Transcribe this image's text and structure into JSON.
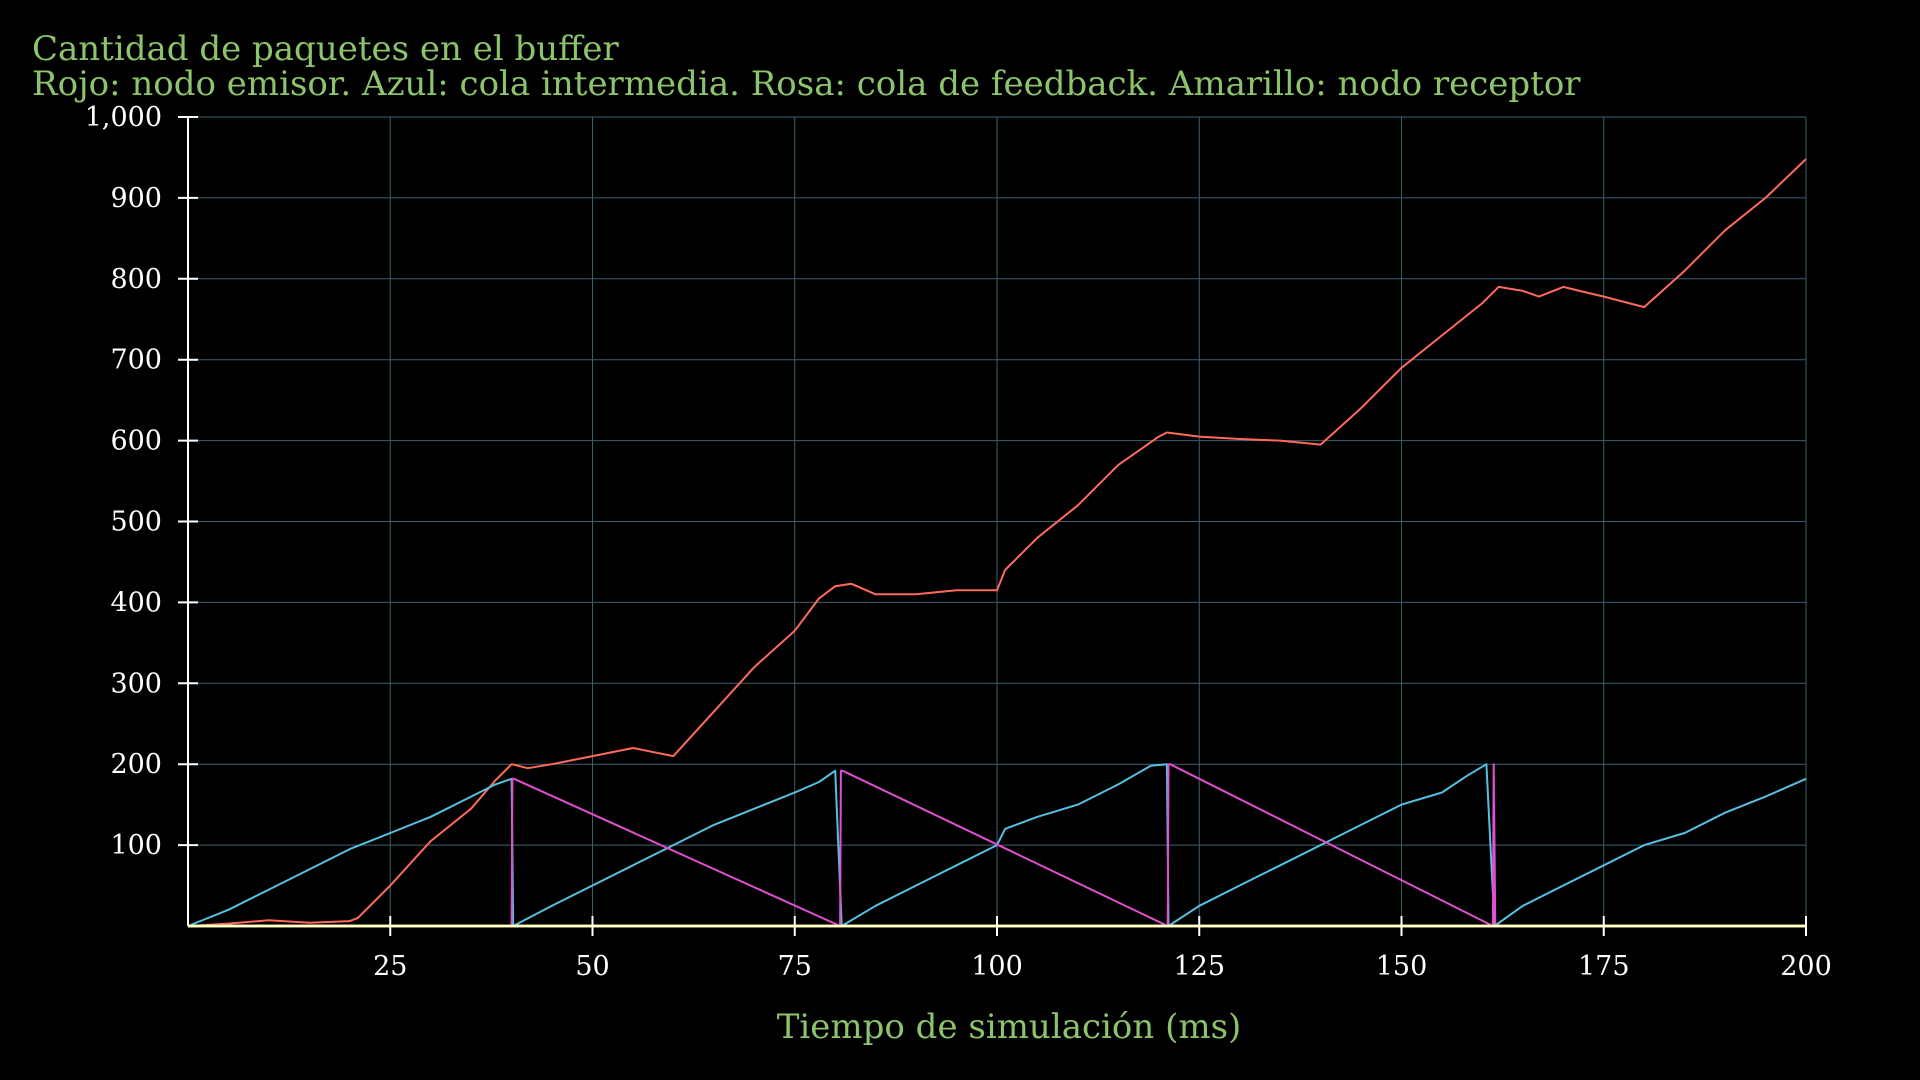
{
  "colors": {
    "background": "#000000",
    "title": "#8dc46b",
    "grid": "#3c5f70",
    "axis": "#ffffff",
    "tick_text": "#ffffff"
  },
  "chart_data": {
    "type": "line",
    "title": "Cantidad de paquetes en el buffer",
    "subtitle": "Rojo: nodo emisor. Azul: cola intermedia. Rosa: cola de feedback. Amarillo: nodo receptor",
    "xlabel": "Tiempo de simulación (ms)",
    "ylabel": "",
    "xlim": [
      0,
      200
    ],
    "ylim": [
      0,
      1000
    ],
    "grid": true,
    "x_ticks": [
      25,
      50,
      75,
      100,
      125,
      150,
      175,
      200
    ],
    "x_tick_labels": [
      "25",
      "50",
      "75",
      "100",
      "125",
      "150",
      "175",
      "200"
    ],
    "y_ticks": [
      100,
      200,
      300,
      400,
      500,
      600,
      700,
      800,
      900,
      1000
    ],
    "y_tick_labels": [
      "100",
      "200",
      "300",
      "400",
      "500",
      "600",
      "700",
      "800",
      "900",
      "1,000"
    ],
    "series": [
      {
        "color": "#ff6a5c",
        "x": [
          0,
          5,
          10,
          15,
          20,
          21,
          25,
          30,
          35,
          38,
          40,
          42,
          45,
          50,
          55,
          60,
          65,
          70,
          75,
          78,
          80,
          82,
          85,
          90,
          95,
          100,
          101,
          105,
          110,
          115,
          120,
          121,
          125,
          130,
          135,
          140,
          145,
          150,
          155,
          160,
          162,
          165,
          167,
          170,
          172,
          175,
          180,
          185,
          190,
          195,
          200
        ],
        "y": [
          0,
          3,
          7,
          4,
          6,
          10,
          50,
          105,
          145,
          180,
          200,
          195,
          200,
          210,
          220,
          210,
          265,
          320,
          365,
          405,
          420,
          423,
          410,
          410,
          415,
          415,
          440,
          480,
          520,
          570,
          605,
          610,
          605,
          602,
          600,
          595,
          640,
          690,
          730,
          770,
          790,
          785,
          778,
          790,
          785,
          778,
          765,
          810,
          860,
          900,
          948
        ]
      },
      {
        "color": "#56c0e0",
        "x": [
          0,
          5,
          10,
          15,
          20,
          25,
          30,
          35,
          38,
          40,
          40.2,
          45,
          50,
          55,
          60,
          65,
          70,
          75,
          78,
          80,
          80.8,
          85,
          90,
          95,
          100,
          101,
          105,
          110,
          115,
          119,
          121,
          121.2,
          125,
          130,
          135,
          140,
          145,
          150,
          155,
          158,
          160.5,
          161.5,
          165,
          170,
          175,
          180,
          185,
          190,
          195,
          200
        ],
        "y": [
          0,
          20,
          45,
          70,
          95,
          115,
          135,
          160,
          175,
          182,
          0,
          25,
          50,
          75,
          100,
          125,
          145,
          165,
          178,
          192,
          0,
          25,
          50,
          75,
          100,
          120,
          135,
          150,
          175,
          198,
          200,
          0,
          25,
          50,
          75,
          100,
          125,
          150,
          165,
          185,
          200,
          0,
          25,
          50,
          75,
          100,
          115,
          140,
          160,
          182
        ]
      },
      {
        "color": "#e04fd0",
        "x": [
          0,
          40,
          40.1,
          40.3,
          80.6,
          80.7,
          80.9,
          121.1,
          121.2,
          121.4,
          161.3,
          161.4,
          161.6,
          200
        ],
        "y": [
          0,
          0,
          182,
          182,
          0,
          192,
          192,
          0,
          200,
          200,
          0,
          200,
          0,
          0
        ]
      },
      {
        "color": "#ffe94a",
        "x": [
          0,
          200
        ],
        "y": [
          0,
          0
        ]
      }
    ]
  }
}
